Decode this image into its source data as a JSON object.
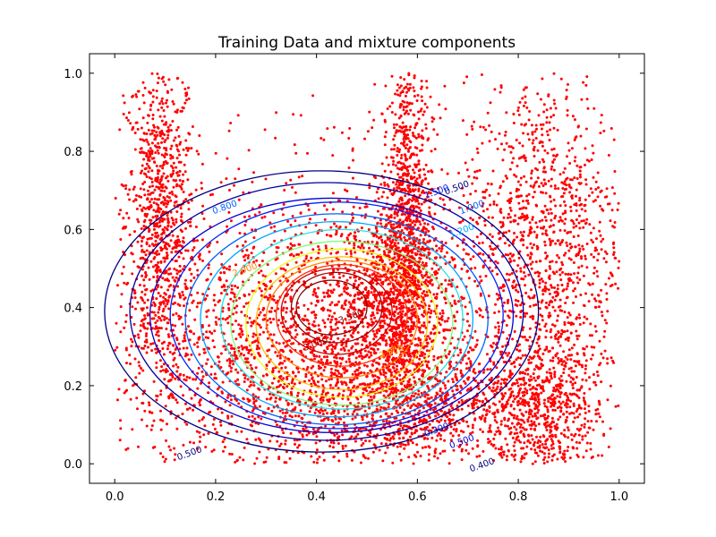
{
  "chart_data": {
    "type": "scatter",
    "title": "Training Data and mixture components",
    "xlabel": "",
    "ylabel": "",
    "xlim": [
      -0.05,
      1.05
    ],
    "ylim": [
      -0.05,
      1.05
    ],
    "grid": false,
    "legend": "none",
    "x_ticks": [
      {
        "value": 0.0,
        "label": "0.0"
      },
      {
        "value": 0.2,
        "label": "0.2"
      },
      {
        "value": 0.4,
        "label": "0.4"
      },
      {
        "value": 0.6,
        "label": "0.6"
      },
      {
        "value": 0.8,
        "label": "0.8"
      },
      {
        "value": 1.0,
        "label": "1.0"
      }
    ],
    "y_ticks": [
      {
        "value": 0.0,
        "label": "0.0"
      },
      {
        "value": 0.2,
        "label": "0.2"
      },
      {
        "value": 0.4,
        "label": "0.4"
      },
      {
        "value": 0.6,
        "label": "0.6"
      },
      {
        "value": 0.8,
        "label": "0.8"
      },
      {
        "value": 1.0,
        "label": "1.0"
      }
    ],
    "scatter": {
      "color": "#ff0000",
      "clusters": [
        {
          "cx": 0.09,
          "cy": 0.62,
          "sx": 0.035,
          "sy": 0.22
        },
        {
          "cx": 0.58,
          "cy": 0.62,
          "sx": 0.025,
          "sy": 0.22
        },
        {
          "cx": 0.55,
          "cy": 0.42,
          "sx": 0.05,
          "sy": 0.12
        },
        {
          "cx": 0.35,
          "cy": 0.25,
          "sx": 0.18,
          "sy": 0.15
        },
        {
          "cx": 0.6,
          "cy": 0.15,
          "sx": 0.15,
          "sy": 0.08
        },
        {
          "cx": 0.45,
          "cy": 0.38,
          "sx": 0.2,
          "sy": 0.2
        },
        {
          "cx": 0.85,
          "cy": 0.15,
          "sx": 0.06,
          "sy": 0.1
        },
        {
          "cx": 0.85,
          "cy": 0.6,
          "sx": 0.08,
          "sy": 0.2
        }
      ]
    },
    "contours": [
      {
        "cx": 0.41,
        "cy": 0.39,
        "rx": 0.43,
        "ry": 0.36,
        "color": "#00007f"
      },
      {
        "cx": 0.42,
        "cy": 0.39,
        "rx": 0.39,
        "ry": 0.33,
        "color": "#00009f"
      },
      {
        "cx": 0.43,
        "cy": 0.38,
        "rx": 0.36,
        "ry": 0.3,
        "color": "#0000d0"
      },
      {
        "cx": 0.44,
        "cy": 0.38,
        "rx": 0.33,
        "ry": 0.29,
        "color": "#0020ff"
      },
      {
        "cx": 0.44,
        "cy": 0.37,
        "rx": 0.3,
        "ry": 0.27,
        "color": "#0060ff"
      },
      {
        "cx": 0.44,
        "cy": 0.37,
        "rx": 0.27,
        "ry": 0.25,
        "color": "#00a8ff"
      },
      {
        "cx": 0.45,
        "cy": 0.37,
        "rx": 0.24,
        "ry": 0.23,
        "color": "#1ee6e6"
      },
      {
        "cx": 0.45,
        "cy": 0.36,
        "rx": 0.22,
        "ry": 0.21,
        "color": "#7cff7a"
      },
      {
        "cx": 0.45,
        "cy": 0.36,
        "rx": 0.19,
        "ry": 0.19,
        "color": "#e8ff10"
      },
      {
        "cx": 0.45,
        "cy": 0.36,
        "rx": 0.17,
        "ry": 0.17,
        "color": "#ffc000"
      },
      {
        "cx": 0.45,
        "cy": 0.37,
        "rx": 0.15,
        "ry": 0.15,
        "color": "#ff8000"
      },
      {
        "cx": 0.45,
        "cy": 0.38,
        "rx": 0.13,
        "ry": 0.13,
        "color": "#ff3000"
      },
      {
        "cx": 0.44,
        "cy": 0.39,
        "rx": 0.11,
        "ry": 0.11,
        "color": "#d00000"
      },
      {
        "cx": 0.44,
        "cy": 0.4,
        "rx": 0.09,
        "ry": 0.09,
        "color": "#a00000"
      },
      {
        "cx": 0.43,
        "cy": 0.4,
        "rx": 0.07,
        "ry": 0.07,
        "color": "#7f0000"
      }
    ],
    "contour_labels": [
      {
        "text": "0.500",
        "x": 0.15,
        "y": 0.02,
        "color": "#00007f"
      },
      {
        "text": "0.400",
        "x": 0.73,
        "y": -0.01,
        "color": "#00007f"
      },
      {
        "text": "0.500",
        "x": 0.69,
        "y": 0.05,
        "color": "#0000d0"
      },
      {
        "text": "0.300",
        "x": 0.64,
        "y": 0.08,
        "color": "#0000d0"
      },
      {
        "text": "0.500",
        "x": 0.68,
        "y": 0.7,
        "color": "#00007f"
      },
      {
        "text": "1.000",
        "x": 0.71,
        "y": 0.65,
        "color": "#0060ff"
      },
      {
        "text": "1.200",
        "x": 0.69,
        "y": 0.59,
        "color": "#00a8ff"
      },
      {
        "text": "1.500",
        "x": 0.64,
        "y": 0.69,
        "color": "#0020ff"
      },
      {
        "text": "0.800",
        "x": 0.22,
        "y": 0.65,
        "color": "#0060ff"
      },
      {
        "text": "2.000",
        "x": 0.26,
        "y": 0.49,
        "color": "#ff8000"
      },
      {
        "text": "3.000",
        "x": 0.4,
        "y": 0.3,
        "color": "#a00000"
      },
      {
        "text": "3.500",
        "x": 0.47,
        "y": 0.37,
        "color": "#7f0000"
      },
      {
        "text": "2.500",
        "x": 0.55,
        "y": 0.28,
        "color": "#ffc000"
      }
    ]
  }
}
